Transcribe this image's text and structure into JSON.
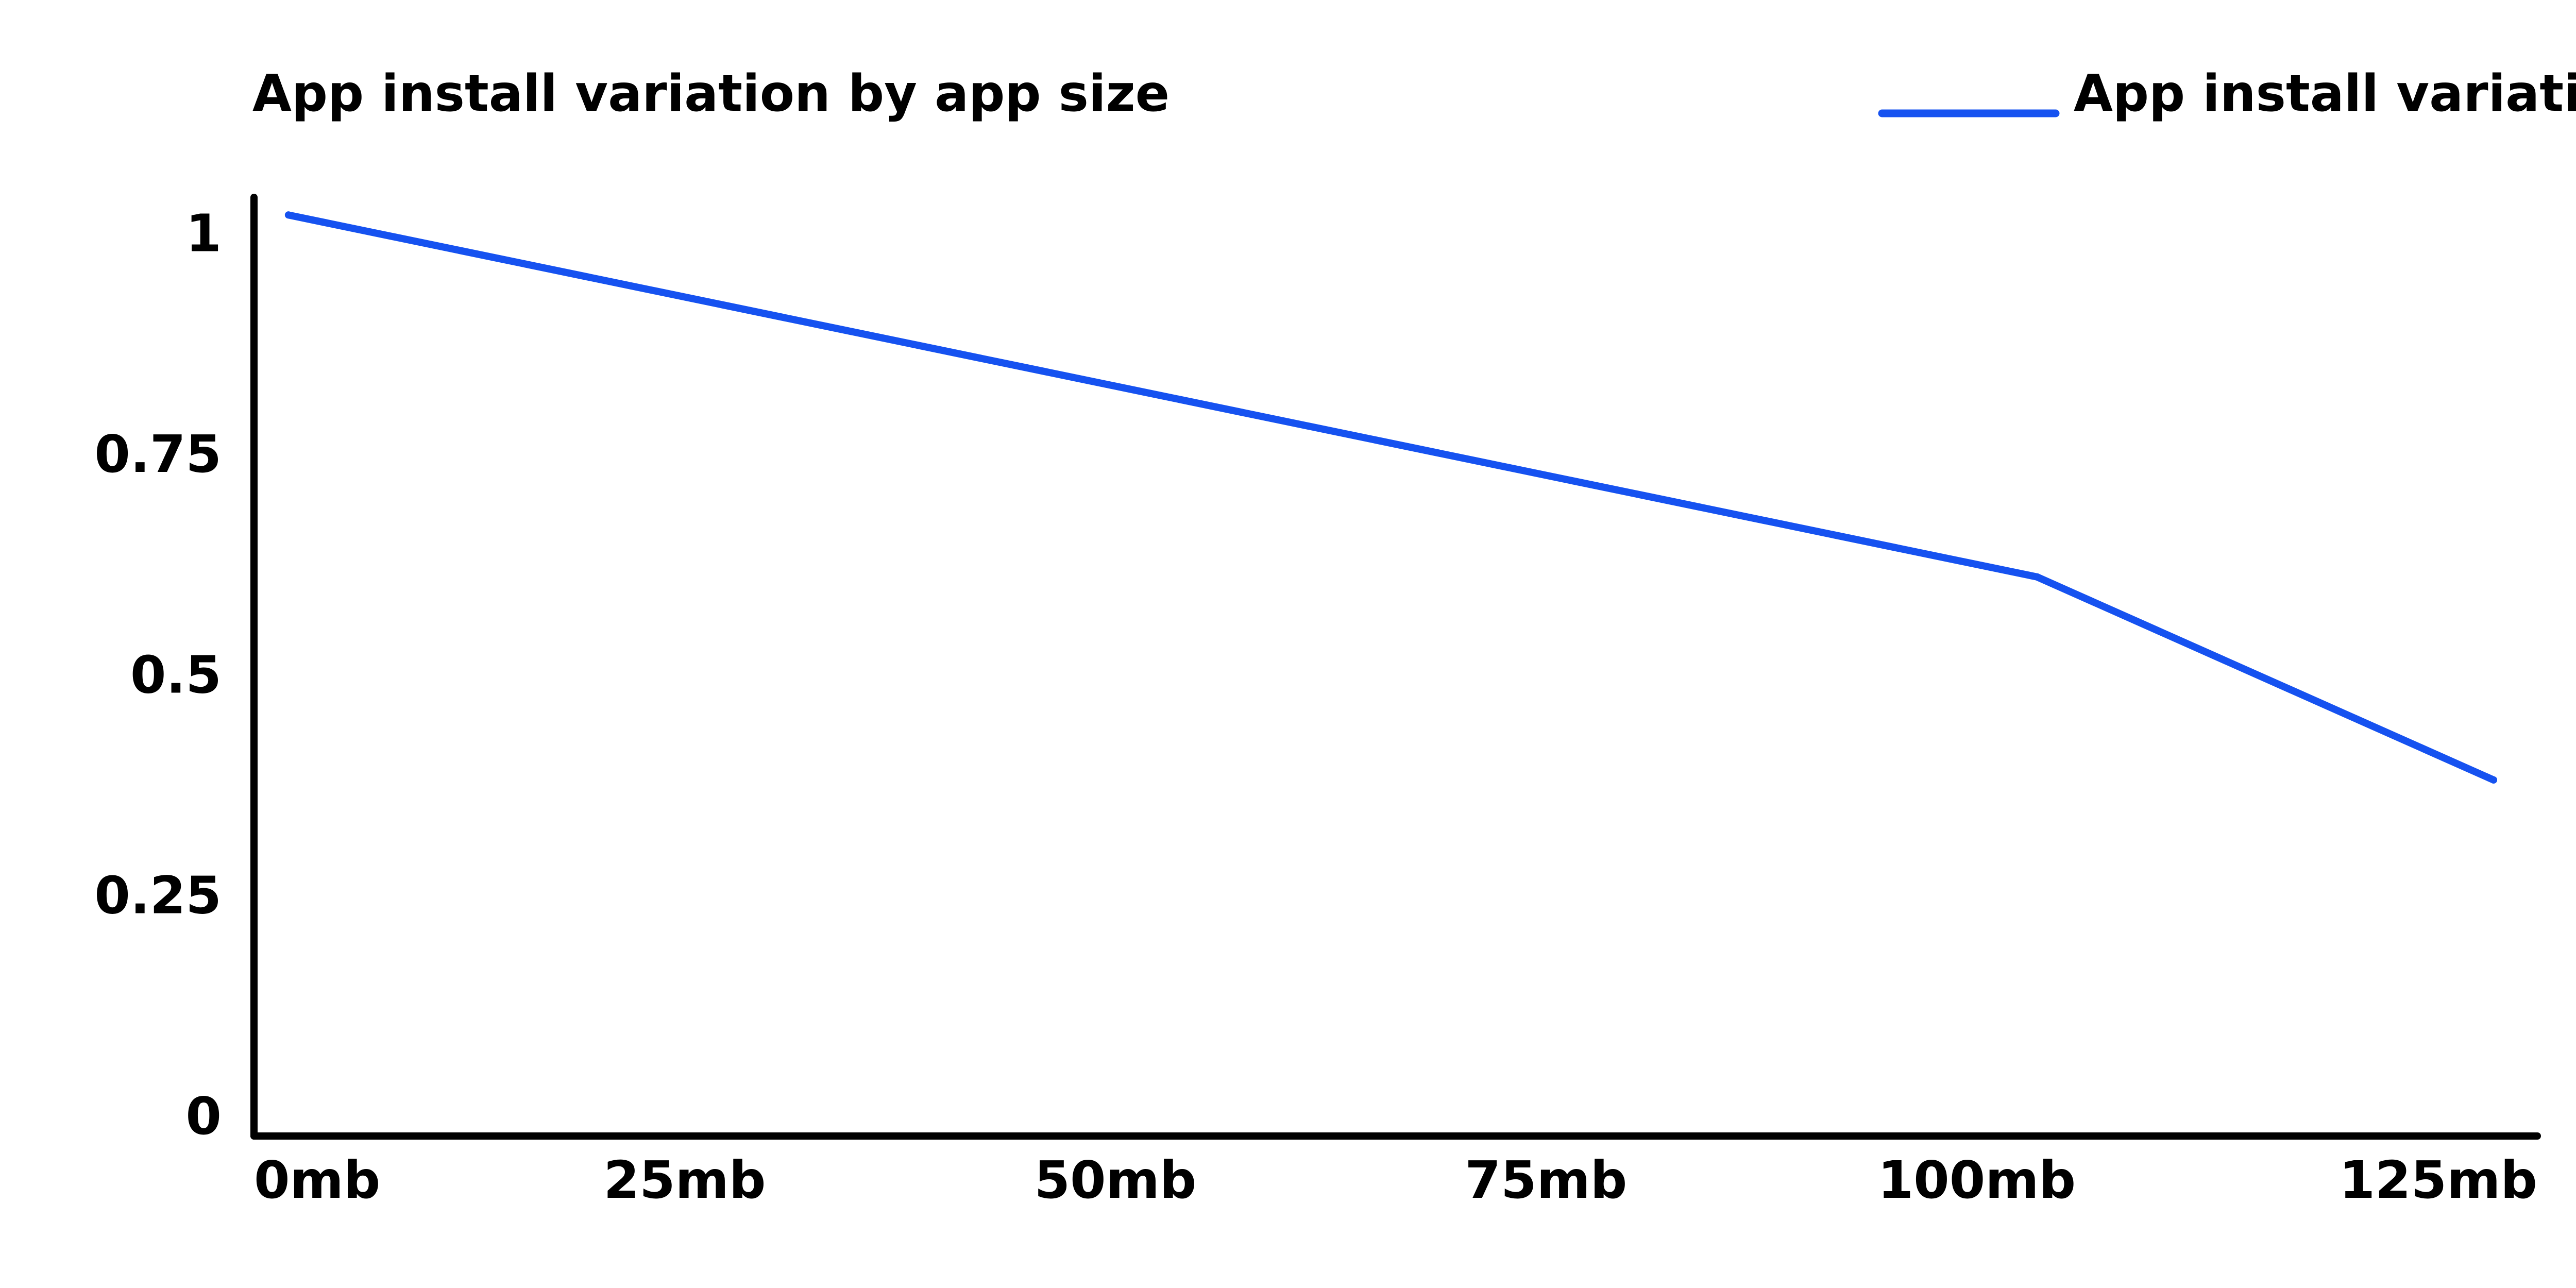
{
  "chart_data": {
    "type": "line",
    "title": "App install variation by app size",
    "xlabel": "",
    "ylabel": "",
    "x_ticks": [
      "0mb",
      "25mb",
      "50mb",
      "75mb",
      "100mb",
      "125mb"
    ],
    "y_ticks": [
      "0",
      "0.25",
      "0.5",
      "0.75",
      "1"
    ],
    "xlim": [
      0,
      130
    ],
    "ylim": [
      0,
      1.04
    ],
    "grid": false,
    "legend_position": "top-right",
    "series": [
      {
        "name": "App install variation",
        "color": "#1652f0",
        "x": [
          2,
          103.5,
          130
        ],
        "y": [
          1.02,
          0.61,
          0.38
        ]
      }
    ]
  }
}
